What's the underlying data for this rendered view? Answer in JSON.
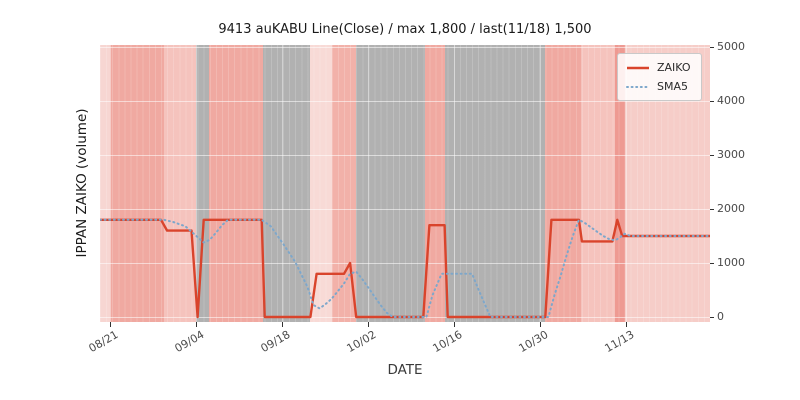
{
  "figure": {
    "title": "9413 auKABU Line(Close) / max 1,800 / last(11/18) 1,500",
    "xlabel": "DATE",
    "ylabel": "IPPAN ZAIKO (volume)"
  },
  "legend": {
    "items": [
      {
        "label": "ZAIKO",
        "color": "#d9442c",
        "style": "solid"
      },
      {
        "label": "SMA5",
        "color": "#7da7cb",
        "style": "dotted"
      }
    ]
  },
  "chart_data": {
    "type": "line",
    "title": "9413 auKABU Line(Close) / max 1,800 / last(11/18) 1,500",
    "xlabel": "DATE",
    "ylabel": "IPPAN ZAIKO (volume)",
    "ylim": [
      0,
      5000
    ],
    "yticks": [
      0,
      1000,
      2000,
      3000,
      4000,
      5000
    ],
    "x_axis_unit": "day-index (0 = left plot edge, 100 = right plot edge)",
    "xticks": [
      {
        "label": "08/21",
        "day": 1.6
      },
      {
        "label": "09/04",
        "day": 15.7
      },
      {
        "label": "09/18",
        "day": 29.8
      },
      {
        "label": "10/02",
        "day": 43.9
      },
      {
        "label": "10/16",
        "day": 58.0
      },
      {
        "label": "10/30",
        "day": 72.1
      },
      {
        "label": "11/13",
        "day": 86.2
      }
    ],
    "annotations": {
      "max_value": 1800,
      "last_date": "11/18",
      "last_value": 1500
    },
    "grid_color": "#ffffff",
    "series": [
      {
        "name": "ZAIKO",
        "color": "#d9442c",
        "style": "solid",
        "points": [
          [
            0,
            1800
          ],
          [
            10,
            1800
          ],
          [
            11,
            1600
          ],
          [
            15,
            1600
          ],
          [
            16,
            0
          ],
          [
            17,
            1800
          ],
          [
            26.5,
            1800
          ],
          [
            27,
            0
          ],
          [
            34.5,
            0
          ],
          [
            35.5,
            800
          ],
          [
            40,
            800
          ],
          [
            41,
            1000
          ],
          [
            42,
            0
          ],
          [
            53,
            0
          ],
          [
            54,
            1700
          ],
          [
            56.5,
            1700
          ],
          [
            57,
            0
          ],
          [
            73,
            0
          ],
          [
            74,
            1800
          ],
          [
            78.5,
            1800
          ],
          [
            79,
            1400
          ],
          [
            84,
            1400
          ],
          [
            84.8,
            1800
          ],
          [
            85.6,
            1500
          ],
          [
            100,
            1500
          ]
        ]
      },
      {
        "name": "SMA5",
        "color": "#7da7cb",
        "style": "dotted",
        "points": [
          [
            0,
            1800
          ],
          [
            10.5,
            1800
          ],
          [
            12,
            1760
          ],
          [
            14,
            1680
          ],
          [
            16,
            1480
          ],
          [
            17,
            1380
          ],
          [
            18,
            1430
          ],
          [
            19,
            1560
          ],
          [
            20,
            1700
          ],
          [
            21,
            1800
          ],
          [
            26.5,
            1800
          ],
          [
            28,
            1680
          ],
          [
            30,
            1360
          ],
          [
            32,
            1020
          ],
          [
            34,
            560
          ],
          [
            35,
            220
          ],
          [
            36,
            160
          ],
          [
            37,
            240
          ],
          [
            38,
            340
          ],
          [
            40,
            620
          ],
          [
            41,
            800
          ],
          [
            42,
            840
          ],
          [
            43,
            700
          ],
          [
            44,
            540
          ],
          [
            45,
            380
          ],
          [
            46,
            220
          ],
          [
            47,
            80
          ],
          [
            48,
            0
          ],
          [
            53.5,
            0
          ],
          [
            54.5,
            400
          ],
          [
            56,
            800
          ],
          [
            61,
            800
          ],
          [
            62,
            520
          ],
          [
            63,
            260
          ],
          [
            64,
            0
          ],
          [
            73.5,
            0
          ],
          [
            74.5,
            400
          ],
          [
            75.5,
            760
          ],
          [
            76.5,
            1140
          ],
          [
            77.5,
            1500
          ],
          [
            78.5,
            1800
          ],
          [
            79.5,
            1740
          ],
          [
            80.5,
            1660
          ],
          [
            81.5,
            1580
          ],
          [
            82.5,
            1500
          ],
          [
            83.5,
            1440
          ],
          [
            84.5,
            1420
          ],
          [
            85.3,
            1480
          ],
          [
            86,
            1540
          ],
          [
            87,
            1500
          ],
          [
            100,
            1500
          ]
        ]
      }
    ],
    "background_bands": [
      {
        "start": 0,
        "end": 1.6,
        "color": "#f7d6d2"
      },
      {
        "start": 1.6,
        "end": 10.5,
        "color": "#f0a9a1"
      },
      {
        "start": 10.5,
        "end": 15.7,
        "color": "#f5c3bd"
      },
      {
        "start": 15.7,
        "end": 17.8,
        "color": "#b1b1b1"
      },
      {
        "start": 17.8,
        "end": 26.7,
        "color": "#f0a9a1"
      },
      {
        "start": 26.7,
        "end": 34.4,
        "color": "#b1b1b1"
      },
      {
        "start": 34.4,
        "end": 38,
        "color": "#f8dad6"
      },
      {
        "start": 38,
        "end": 41.9,
        "color": "#f2b1a9"
      },
      {
        "start": 41.9,
        "end": 53.3,
        "color": "#b1b1b1"
      },
      {
        "start": 53.3,
        "end": 56.6,
        "color": "#f0a9a1"
      },
      {
        "start": 56.6,
        "end": 73,
        "color": "#b1b1b1"
      },
      {
        "start": 73,
        "end": 78.8,
        "color": "#f0a9a1"
      },
      {
        "start": 78.8,
        "end": 84.5,
        "color": "#f5c3bd"
      },
      {
        "start": 84.5,
        "end": 86.1,
        "color": "#ee9a92"
      },
      {
        "start": 86.1,
        "end": 100,
        "color": "#f6cdc8"
      }
    ]
  }
}
